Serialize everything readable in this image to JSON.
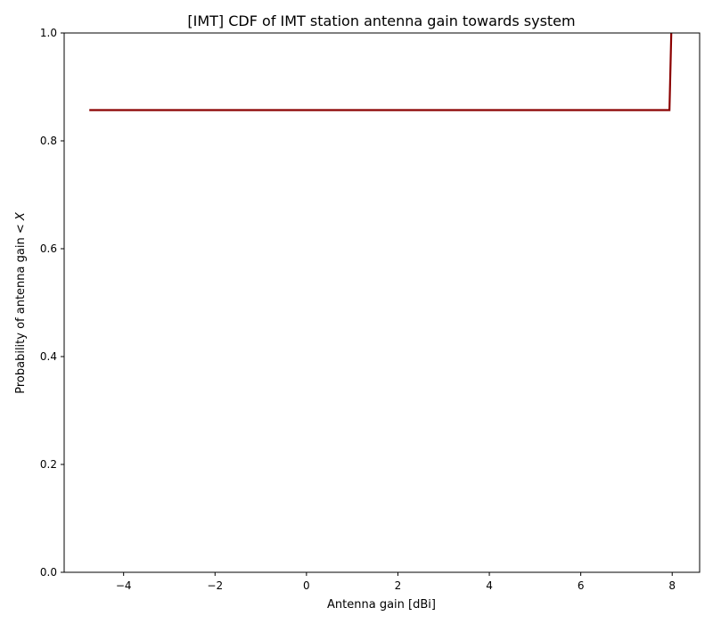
{
  "chart_data": {
    "type": "line",
    "title": "[IMT] CDF of IMT station antenna gain towards system",
    "xlabel": "Antenna gain [dBi]",
    "ylabel_prefix": "Probability of antenna gain < ",
    "ylabel_var": "X",
    "xlim": [
      -5.3,
      8.6
    ],
    "ylim": [
      0.0,
      1.0
    ],
    "x_ticks": [
      {
        "value": -4,
        "label": "−4"
      },
      {
        "value": -2,
        "label": "−2"
      },
      {
        "value": 0,
        "label": "0"
      },
      {
        "value": 2,
        "label": "2"
      },
      {
        "value": 4,
        "label": "4"
      },
      {
        "value": 6,
        "label": "6"
      },
      {
        "value": 8,
        "label": "8"
      }
    ],
    "y_ticks": [
      {
        "value": 0.0,
        "label": "0.0"
      },
      {
        "value": 0.2,
        "label": "0.2"
      },
      {
        "value": 0.4,
        "label": "0.4"
      },
      {
        "value": 0.6,
        "label": "0.6"
      },
      {
        "value": 0.8,
        "label": "0.8"
      },
      {
        "value": 1.0,
        "label": "1.0"
      }
    ],
    "grid": false,
    "series": [
      {
        "color": "#8b0000",
        "points": [
          {
            "x": -4.75,
            "y": 0.857
          },
          {
            "x": 7.94,
            "y": 0.857
          },
          {
            "x": 7.98,
            "y": 1.0
          }
        ]
      }
    ]
  }
}
